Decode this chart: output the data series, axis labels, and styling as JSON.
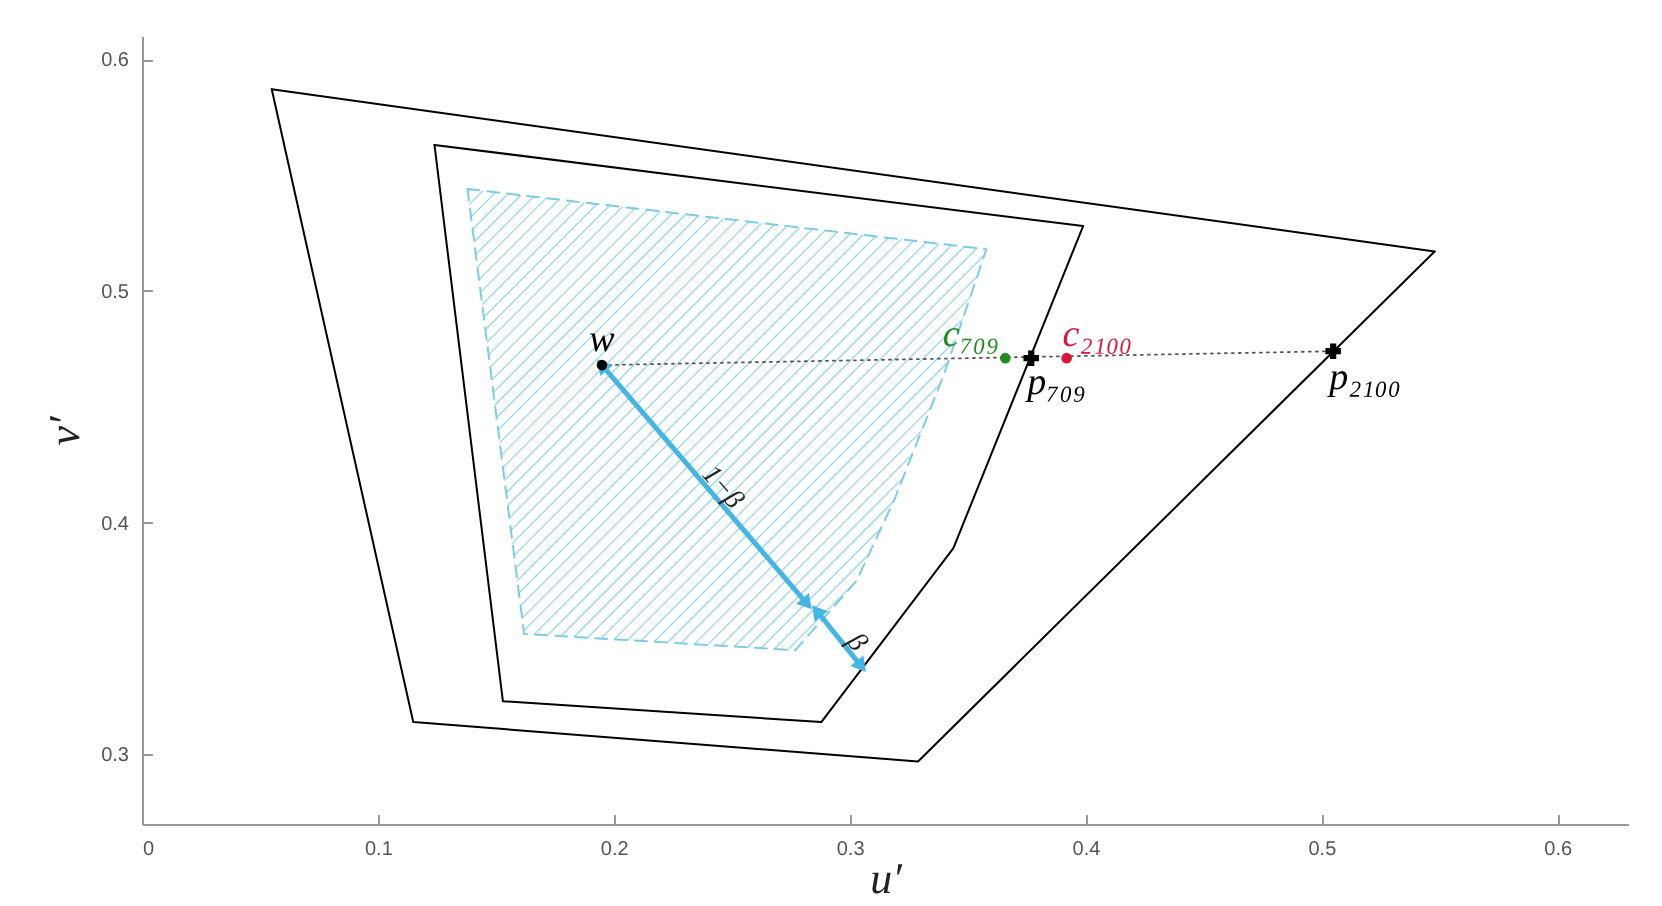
{
  "chart_data": {
    "type": "line",
    "xlabel": "u′",
    "ylabel": "v′",
    "xlim": [
      0,
      0.63
    ],
    "ylim": [
      0.27,
      0.61
    ],
    "xticks": [
      0,
      0.1,
      0.2,
      0.3,
      0.4,
      0.5,
      0.6
    ],
    "yticks": [
      0.3,
      0.4,
      0.5,
      0.6
    ],
    "series": [
      {
        "color": "#000000",
        "x": [
          0.055,
          0.548
        ],
        "values": [
          0.587,
          0.517
        ]
      },
      {
        "color": "#000000",
        "x": [
          0.548,
          0.329,
          0.115,
          0.055
        ],
        "values": [
          0.517,
          0.297,
          0.314,
          0.587
        ]
      },
      {
        "color": "#000000",
        "x": [
          0.124,
          0.399
        ],
        "values": [
          0.563,
          0.528
        ]
      },
      {
        "color": "#000000",
        "x": [
          0.399,
          0.344,
          0.288,
          0.153,
          0.124
        ],
        "values": [
          0.528,
          0.389,
          0.314,
          0.323,
          0.563
        ]
      },
      {
        "type": "area",
        "color": "#7ccde3",
        "line_style": "dashed",
        "x": [
          0.138,
          0.358,
          0.34,
          0.319,
          0.303,
          0.277,
          0.162
        ],
        "values": [
          0.544,
          0.518,
          0.464,
          0.41,
          0.375,
          0.345,
          0.352
        ]
      },
      {
        "color": "#555555",
        "line_style": "dotted",
        "x": [
          0.195,
          0.505
        ],
        "values": [
          0.468,
          0.474
        ]
      },
      {
        "color": "#45b5e3",
        "marker": "triangle",
        "x": [
          0.195,
          0.282
        ],
        "values": [
          0.468,
          0.365
        ]
      },
      {
        "color": "#45b5e3",
        "marker": "triangle",
        "x": [
          0.286,
          0.305
        ],
        "values": [
          0.362,
          0.338
        ]
      },
      {
        "type": "scatter",
        "name": "w",
        "color": "#000000",
        "marker": "circle",
        "x": [
          0.195
        ],
        "values": [
          0.468
        ]
      },
      {
        "type": "scatter",
        "name": "c₇₀₉",
        "color": "#1e8c1e",
        "marker": "circle",
        "x": [
          0.366
        ],
        "values": [
          0.471
        ]
      },
      {
        "type": "scatter",
        "name": "p₇₀₉",
        "color": "#000000",
        "marker": "cross",
        "x": [
          0.377
        ],
        "values": [
          0.471
        ]
      },
      {
        "type": "scatter",
        "name": "c₂₁₀₀",
        "color": "#dc143c",
        "marker": "circle",
        "x": [
          0.392
        ],
        "values": [
          0.471
        ]
      },
      {
        "type": "scatter",
        "name": "p₂₁₀₀",
        "color": "#000000",
        "marker": "cross",
        "x": [
          0.505
        ],
        "values": [
          0.474
        ]
      }
    ],
    "annotations": [
      "1−β",
      "β"
    ]
  }
}
